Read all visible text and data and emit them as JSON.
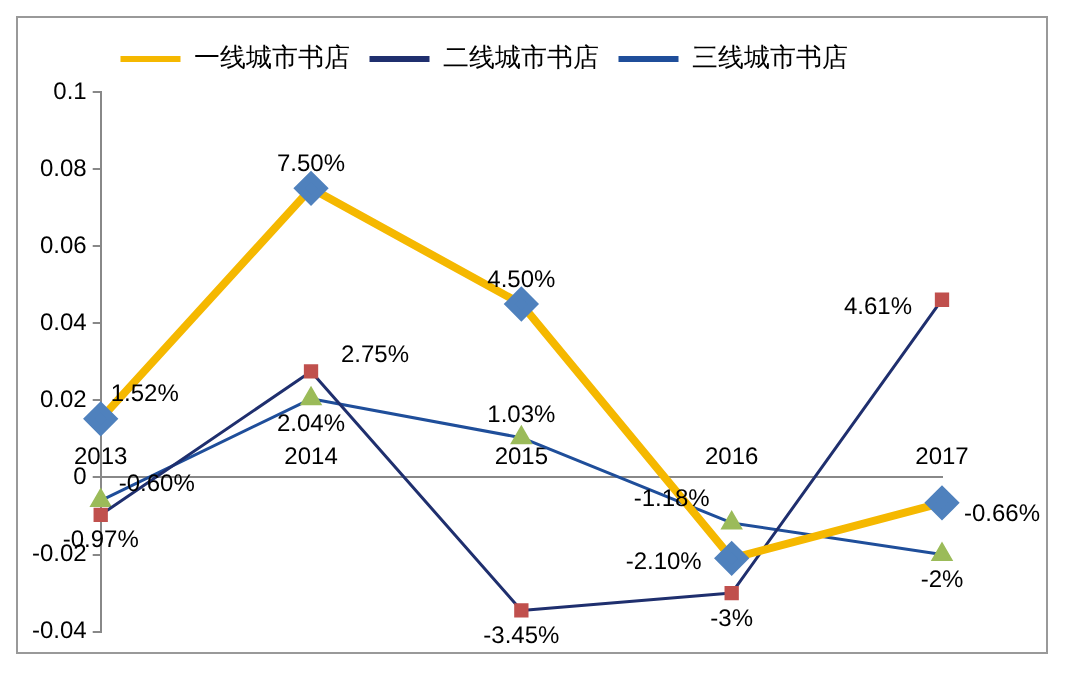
{
  "chart_data": {
    "type": "line",
    "categories": [
      "2013",
      "2014",
      "2015",
      "2016",
      "2017"
    ],
    "series": [
      {
        "name": "一线城市书店",
        "color": "#f5b800",
        "marker": "diamond",
        "colors": [
          "#4f81bd",
          "#4f81bd",
          "#4f81bd",
          "#4f81bd",
          "#4f81bd"
        ],
        "values": [
          0.0152,
          0.075,
          0.045,
          -0.021,
          -0.0066
        ],
        "value_labels": [
          "1.52%",
          "7.50%",
          "4.50%",
          "-2.10%",
          "-0.66%"
        ]
      },
      {
        "name": "二线城市书店",
        "color": "#1f2f6e",
        "marker": "square",
        "colors": [
          "#c0504d",
          "#c0504d",
          "#c0504d",
          "#c0504d",
          "#c0504d"
        ],
        "values": [
          -0.0097,
          0.0275,
          -0.0345,
          -0.03,
          0.0461
        ],
        "value_labels": [
          "-0.97%",
          "2.75%",
          "-3.45%",
          "-3%",
          "4.61%"
        ]
      },
      {
        "name": "三线城市书店",
        "color": "#1f4e9a",
        "marker": "triangle",
        "colors": [
          "#9bbb59",
          "#9bbb59",
          "#9bbb59",
          "#9bbb59",
          "#9bbb59"
        ],
        "values": [
          -0.006,
          0.0204,
          0.0103,
          -0.0118,
          -0.02
        ],
        "value_labels": [
          "-0.60%",
          "2.04%",
          "1.03%",
          "-1.18%",
          "-2%"
        ]
      }
    ],
    "ylim": [
      -0.04,
      0.1
    ],
    "yticks": [
      -0.04,
      -0.02,
      0,
      0.02,
      0.04,
      0.06,
      0.08,
      0.1
    ],
    "grid": false,
    "legend": "top"
  }
}
